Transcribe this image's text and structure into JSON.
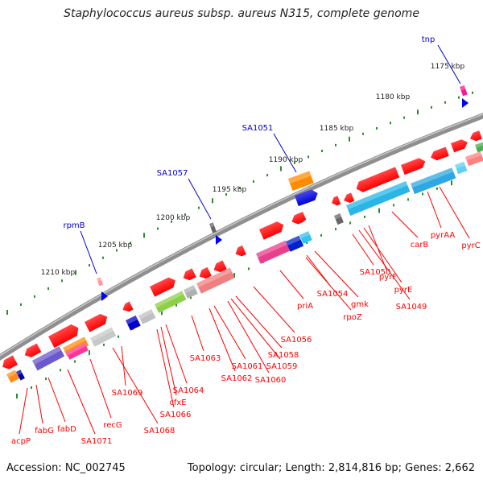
{
  "title": "Staphylococcus aureus subsp. aureus N315, complete genome",
  "footer": {
    "accession": "Accession: NC_002745",
    "summary": "Topology: circular; Length: 2,814,816 bp; Genes: 2,662"
  },
  "colors": {
    "backbone": "#888888",
    "ticks": "#2e8b2e",
    "gene_arrow": "#ff0000",
    "top_label": "#0000cc",
    "gene_label": "#ff0000"
  },
  "kbp_labels": [
    "1175 kbp",
    "1180 kbp",
    "1185 kbp",
    "1190 kbp",
    "1195 kbp",
    "1200 kbp",
    "1205 kbp",
    "1210 kbp"
  ],
  "top_labels": [
    "tnp",
    "SA1051",
    "SA1057",
    "rpmB"
  ],
  "gene_labels": [
    "pyrAA",
    "pyrC",
    "carB",
    "pyrF",
    "pyrE",
    "SA1049",
    "SA1050",
    "gmk",
    "SA1054",
    "rpoZ",
    "priA",
    "SA1056",
    "SA1058",
    "SA1059",
    "SA1060",
    "SA1061",
    "SA1062",
    "SA1063",
    "SA1064",
    "cfxE",
    "SA1066",
    "SA1069",
    "SA1068",
    "recG",
    "SA1071",
    "fabD",
    "fabG",
    "acpP"
  ]
}
